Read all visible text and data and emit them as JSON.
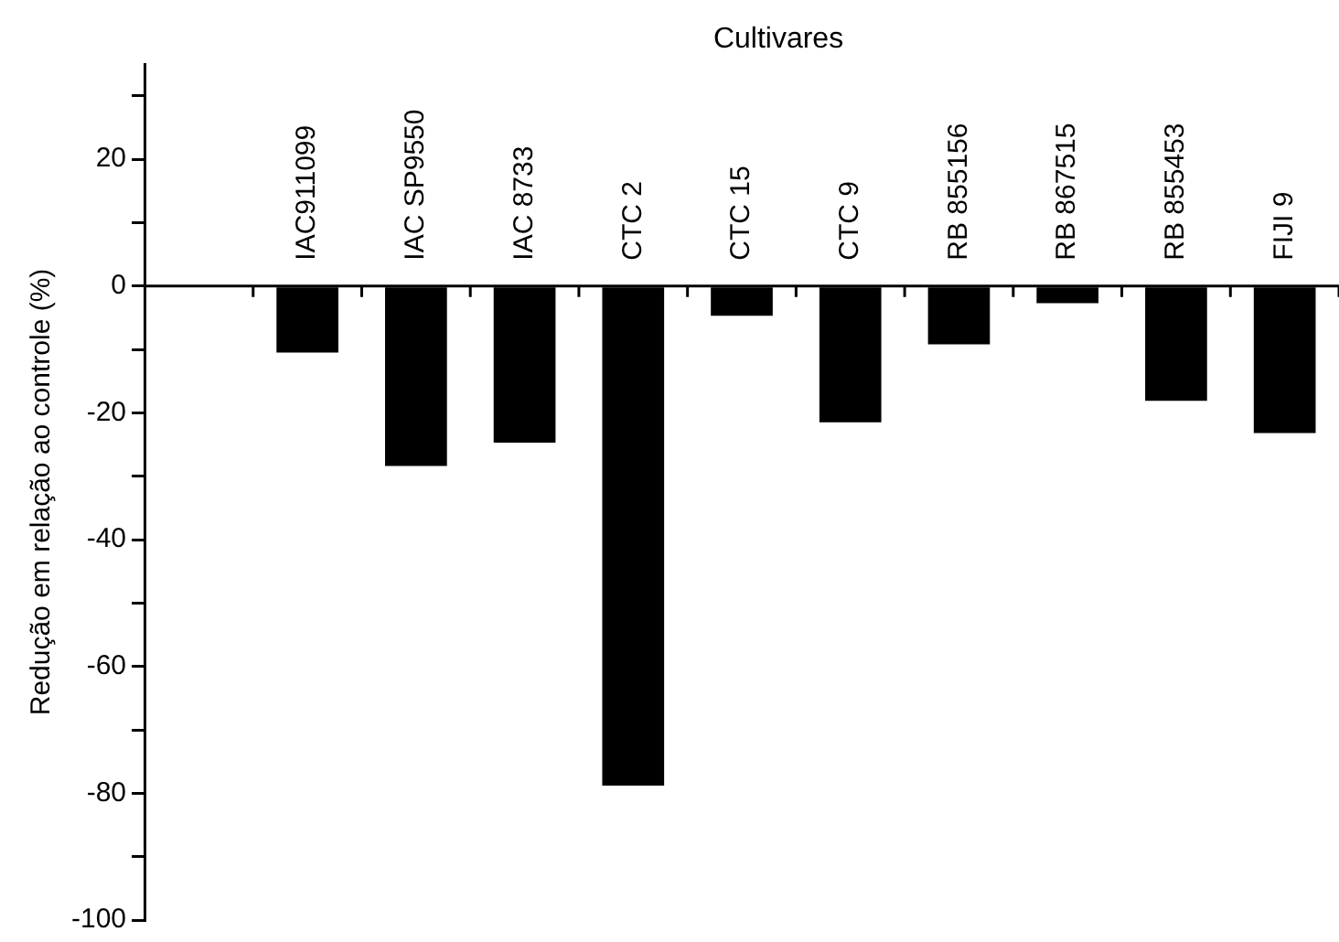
{
  "chart_data": {
    "type": "bar",
    "xlabel": "Cultivares",
    "ylabel": "Redução em relação ao controle (%)",
    "categories": [
      null,
      "IAC911099",
      "IAC SP9550",
      "IAC 8733",
      "CTC 2",
      "CTC 15",
      "CTC 9",
      "RB 855156",
      "RB 867515",
      "RB 855453",
      "FIJI 9"
    ],
    "values": [
      null,
      -10.5,
      -28.4,
      -24.7,
      -78.8,
      -4.7,
      -21.5,
      -9.2,
      -2.7,
      -18.1,
      -23.2
    ],
    "color": "#000000",
    "ylim": [
      -100,
      35
    ],
    "yticks": [
      -100,
      {
        "value": -90,
        "label": null
      },
      -80,
      {
        "value": -70,
        "label": null
      },
      -60,
      {
        "value": -50,
        "label": null
      },
      -40,
      {
        "value": -30,
        "label": null
      },
      -20,
      {
        "value": -10,
        "label": null
      },
      0,
      {
        "value": 10,
        "label": null
      },
      20,
      {
        "value": 30,
        "label": null
      }
    ]
  }
}
